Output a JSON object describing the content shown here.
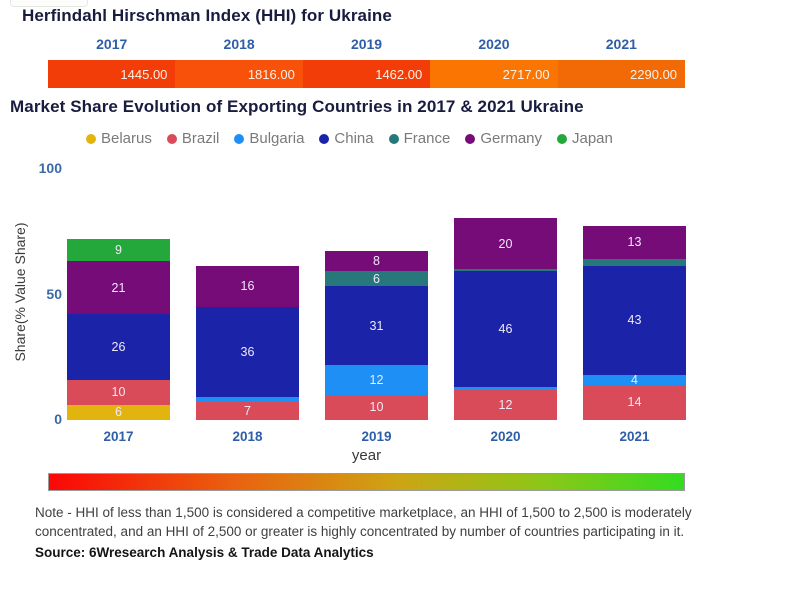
{
  "hhi": {
    "title": "Herfindahl Hirschman Index (HHI) for Ukraine",
    "years": [
      "2017",
      "2018",
      "2019",
      "2020",
      "2021"
    ],
    "values": [
      "1445.00",
      "1816.00",
      "1462.00",
      "2717.00",
      "2290.00"
    ],
    "segment_colors": [
      "#F23D08",
      "#F8520A",
      "#F23D08",
      "#FB7503",
      "#F26A05"
    ]
  },
  "market": {
    "title": "Market Share Evolution of Exporting Countries in 2017 & 2021 Ukraine",
    "legend": [
      {
        "label": "Belarus",
        "color": "#E2B40E"
      },
      {
        "label": "Brazil",
        "color": "#D94B59"
      },
      {
        "label": "Bulgaria",
        "color": "#1E90F5"
      },
      {
        "label": "China",
        "color": "#1B23A8"
      },
      {
        "label": "France",
        "color": "#27787B"
      },
      {
        "label": "Germany",
        "color": "#750C78"
      },
      {
        "label": "Japan",
        "color": "#24A83C"
      }
    ],
    "yticks": [
      "100",
      "50",
      "0"
    ],
    "ylabel": "Share(% Value Share)",
    "xlabel": "year"
  },
  "chart_data": [
    {
      "type": "table",
      "title": "Herfindahl Hirschman Index (HHI) for Ukraine",
      "columns": [
        "2017",
        "2018",
        "2019",
        "2020",
        "2021"
      ],
      "values": [
        1445.0,
        1816.0,
        1462.0,
        2717.0,
        2290.0
      ]
    },
    {
      "type": "bar",
      "stacked": true,
      "title": "Market Share Evolution of Exporting Countries in 2017 & 2021 Ukraine",
      "categories": [
        "2017",
        "2018",
        "2019",
        "2020",
        "2021"
      ],
      "series": [
        {
          "name": "Belarus",
          "color": "#E2B40E",
          "values": [
            6,
            0,
            0,
            0,
            0
          ]
        },
        {
          "name": "Brazil",
          "color": "#D94B59",
          "values": [
            10,
            7,
            10,
            12,
            14
          ]
        },
        {
          "name": "Bulgaria",
          "color": "#1E90F5",
          "values": [
            0,
            2,
            12,
            1,
            4
          ]
        },
        {
          "name": "China",
          "color": "#1B23A8",
          "values": [
            26,
            36,
            31,
            46,
            43
          ]
        },
        {
          "name": "France",
          "color": "#27787B",
          "values": [
            0,
            0,
            6,
            1,
            3
          ]
        },
        {
          "name": "Germany",
          "color": "#750C78",
          "values": [
            21,
            16,
            8,
            20,
            13
          ]
        },
        {
          "name": "Japan",
          "color": "#24A83C",
          "values": [
            9,
            0,
            0,
            0,
            0
          ]
        }
      ],
      "xlabel": "year",
      "ylabel": "Share(% Value Share)",
      "ylim": [
        0,
        100
      ],
      "yticks": [
        0,
        50,
        100
      ],
      "value_labels_min": 4,
      "legend_position": "top"
    }
  ],
  "colorbar": {
    "gradient": [
      "#FB0707",
      "#E96410",
      "#CDA513",
      "#8CC717",
      "#33DC20"
    ]
  },
  "note": {
    "text": "Note - HHI of less than 1,500 is considered a competitive marketplace, an HHI of 1,500 to 2,500 is moderately concentrated, and an HHI of 2,500 or greater is highly concentrated by number of countries participating in it.",
    "source": "Source: 6Wresearch Analysis & Trade Data Analytics"
  }
}
